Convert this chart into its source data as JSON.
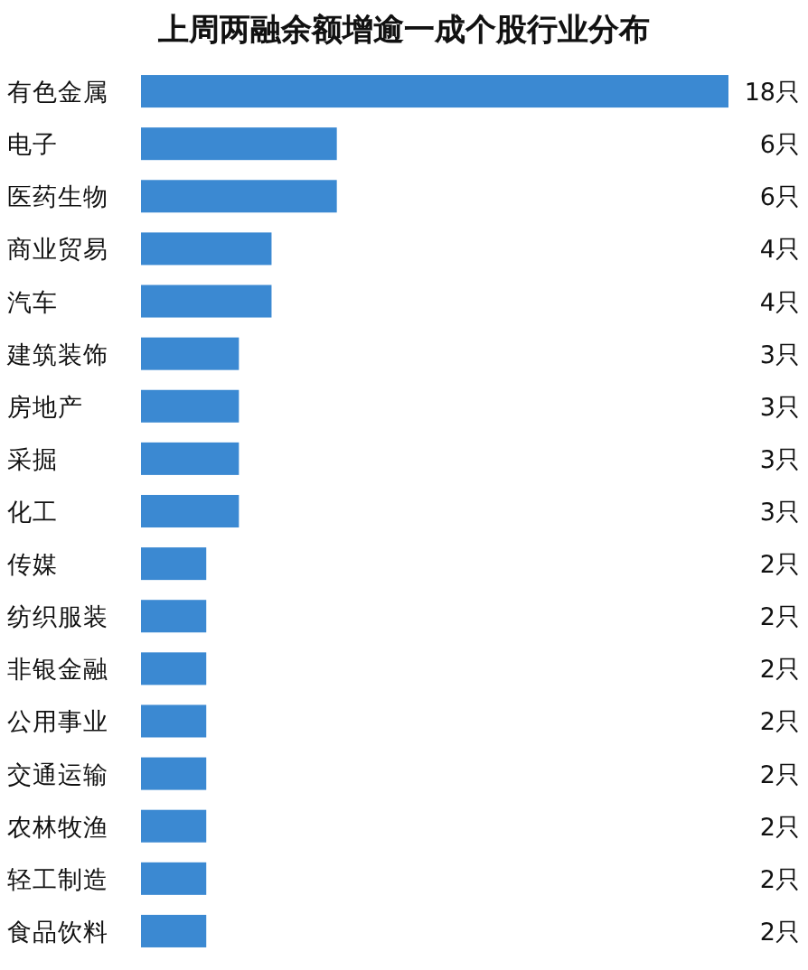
{
  "chart_data": {
    "type": "bar",
    "orientation": "horizontal",
    "title": "上周两融余额增逾一成个股行业分布",
    "categories": [
      "有色金属",
      "电子",
      "医药生物",
      "商业贸易",
      "汽车",
      "建筑装饰",
      "房地产",
      "采掘",
      "化工",
      "传媒",
      "纺织服装",
      "非银金融",
      "公用事业",
      "交通运输",
      "农林牧渔",
      "轻工制造",
      "食品饮料"
    ],
    "values": [
      18,
      6,
      6,
      4,
      4,
      3,
      3,
      3,
      3,
      2,
      2,
      2,
      2,
      2,
      2,
      2,
      2
    ],
    "value_labels": [
      "18只",
      "6只",
      "6只",
      "4只",
      "4只",
      "3只",
      "3只",
      "3只",
      "3只",
      "2只",
      "2只",
      "2只",
      "2只",
      "2只",
      "2只",
      "2只",
      "2只"
    ],
    "color": "#3b89d2"
  }
}
